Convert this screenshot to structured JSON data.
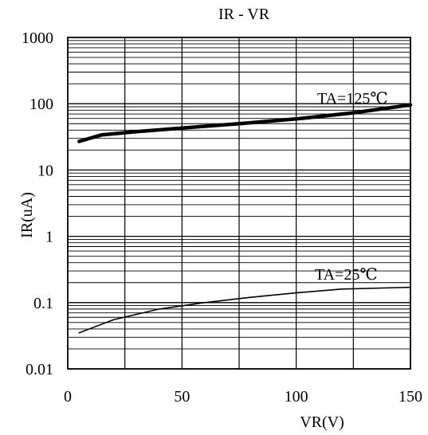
{
  "chart_data": {
    "type": "line",
    "title": "IR - VR",
    "xlabel": "VR(V)",
    "ylabel": "IR(uA)",
    "y_scale": "log",
    "xlim": [
      0,
      150
    ],
    "ylim": [
      0.01,
      1000
    ],
    "y_ticks": [
      "1000",
      "100",
      "10",
      "1",
      "0.1",
      "0.01"
    ],
    "x_ticks": [
      "0",
      "50",
      "100",
      "150"
    ],
    "grid": true,
    "series": [
      {
        "name": "TA=125℃",
        "color": "#000000",
        "x": [
          5,
          15,
          30,
          50,
          75,
          100,
          125,
          150
        ],
        "y": [
          27,
          34,
          38,
          43,
          50,
          59,
          73,
          96
        ]
      },
      {
        "name": "TA=25℃",
        "color": "#000000",
        "x": [
          5,
          20,
          40,
          60,
          80,
          100,
          120,
          150
        ],
        "y": [
          0.035,
          0.055,
          0.08,
          0.1,
          0.12,
          0.14,
          0.16,
          0.17
        ]
      }
    ]
  }
}
